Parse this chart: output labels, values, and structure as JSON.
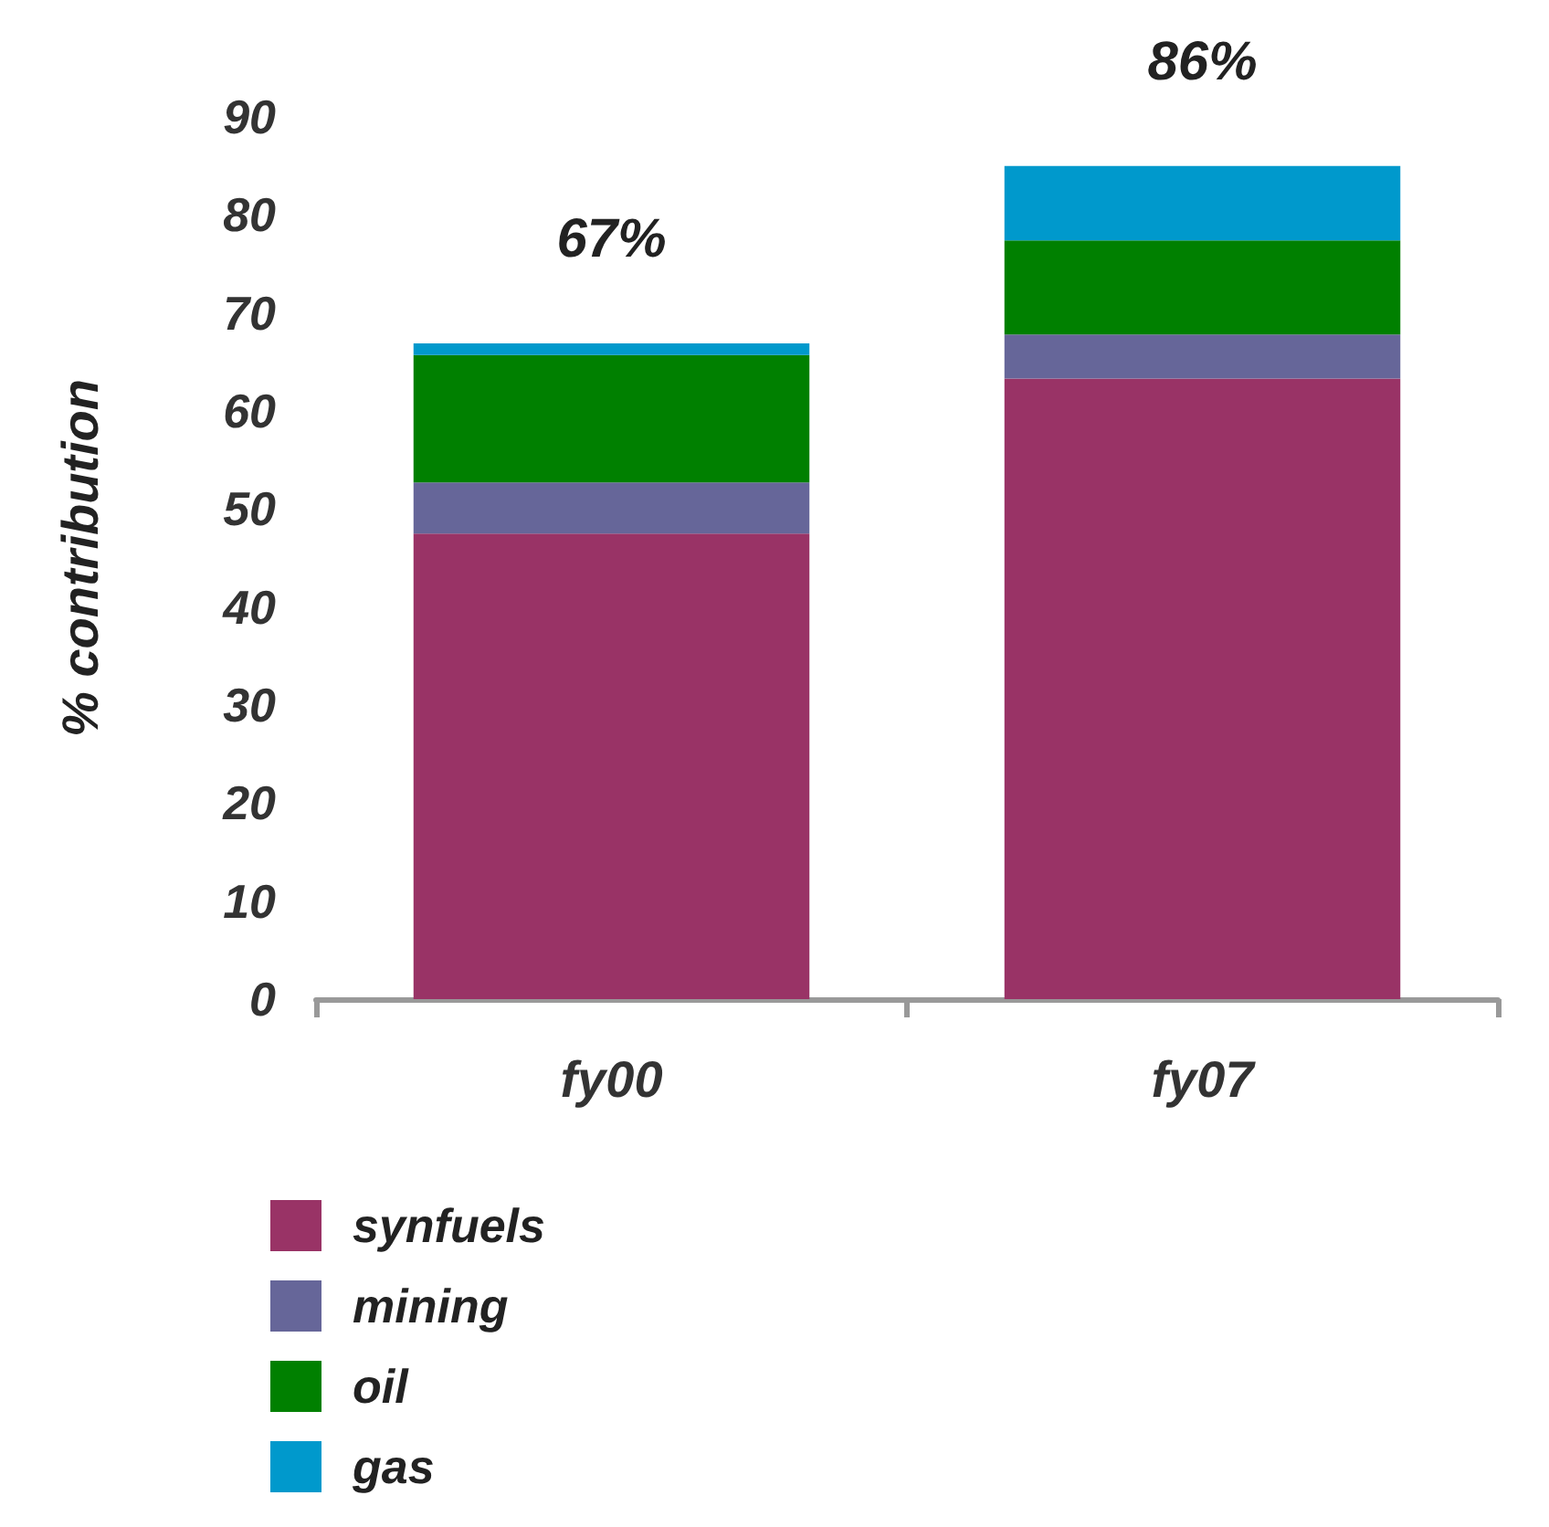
{
  "chart_data": {
    "type": "bar",
    "stacked": true,
    "ylabel": "% contribution",
    "categories": [
      "fy00",
      "fy07"
    ],
    "series": [
      {
        "name": "synfuels",
        "color": "#993366",
        "values": [
          47.5,
          63.3
        ]
      },
      {
        "name": "mining",
        "color": "#666699",
        "values": [
          5.2,
          4.5
        ]
      },
      {
        "name": "oil",
        "color": "#008000",
        "values": [
          13,
          9.6
        ]
      },
      {
        "name": "gas",
        "color": "#0099cc",
        "values": [
          1.2,
          7.6
        ]
      }
    ],
    "totals": [
      "67%",
      "86%"
    ],
    "ylim": [
      0,
      90
    ],
    "yticks": [
      0,
      10,
      20,
      30,
      40,
      50,
      60,
      70,
      80,
      90
    ],
    "grid": false,
    "legend": "bottom left"
  }
}
